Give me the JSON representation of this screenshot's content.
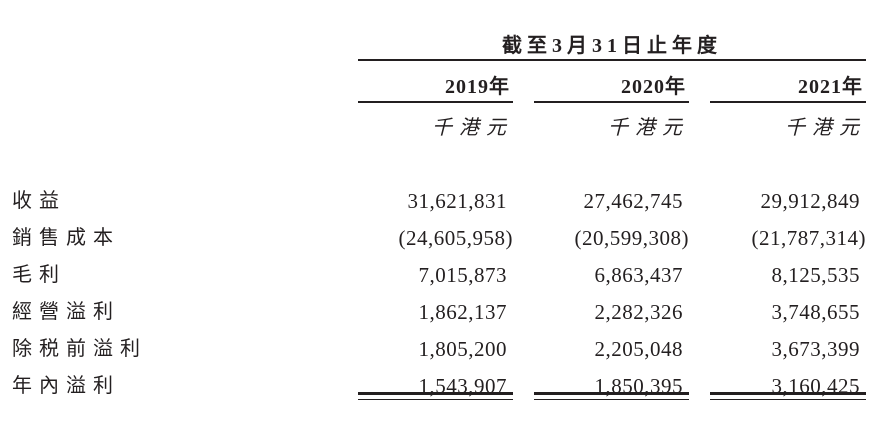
{
  "table": {
    "period_header": "截至3月31日止年度",
    "columns": [
      {
        "year": "2019年",
        "unit": "千港元"
      },
      {
        "year": "2020年",
        "unit": "千港元"
      },
      {
        "year": "2021年",
        "unit": "千港元"
      }
    ],
    "rows": [
      {
        "label": "收益",
        "values": [
          "31,621,831",
          "27,462,745",
          "29,912,849"
        ]
      },
      {
        "label": "銷售成本",
        "values": [
          "(24,605,958)",
          "(20,599,308)",
          "(21,787,314)"
        ]
      },
      {
        "label": "毛利",
        "values": [
          "7,015,873",
          "6,863,437",
          "8,125,535"
        ]
      },
      {
        "label": "經營溢利",
        "values": [
          "1,862,137",
          "2,282,326",
          "3,748,655"
        ]
      },
      {
        "label": "除税前溢利",
        "values": [
          "1,805,200",
          "2,205,048",
          "3,673,399"
        ]
      },
      {
        "label": "年內溢利",
        "values": [
          "1,543,907",
          "1,850,395",
          "3,160,425"
        ]
      }
    ],
    "text_color": "#231f20"
  }
}
